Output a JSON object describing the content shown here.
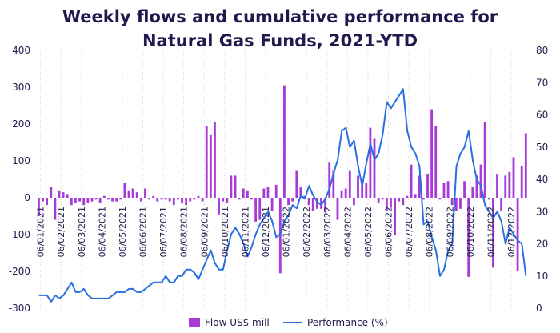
{
  "chart_data": {
    "type": "bar+line",
    "title_line1": "Weekly flows and cumulative performance for",
    "title_line2": "Natural Gas Funds, 2021-YTD",
    "y_left": {
      "ticks": [
        400,
        300,
        200,
        100,
        0,
        -100,
        -200,
        -300
      ],
      "range": [
        -300,
        400
      ]
    },
    "y_right": {
      "ticks": [
        80,
        70,
        60,
        50,
        40,
        30,
        20,
        10,
        0
      ],
      "range": [
        0,
        80
      ]
    },
    "x_tick_labels": [
      "06/01/2021",
      "06/02/2021",
      "06/03/2021",
      "06/04/2021",
      "06/05/2021",
      "06/06/2021",
      "06/07/2021",
      "06/08/2021",
      "06/09/2021",
      "06/10/2021",
      "06/11/2021",
      "06/12/2021",
      "06/01/2022",
      "06/02/2022",
      "06/03/2022",
      "06/04/2022",
      "06/05/2022",
      "06/06/2022",
      "06/07/2022",
      "06/08/2022",
      "06/09/2022",
      "06/10/2022",
      "06/11/2022",
      "06/12/2022"
    ],
    "grid": "vertical",
    "legend_position": "bottom",
    "series": [
      {
        "name": "Flow US$ mill",
        "kind": "bar",
        "color": "#a63bd8",
        "values": [
          -50,
          -10,
          -20,
          30,
          -60,
          20,
          15,
          10,
          -20,
          -15,
          -10,
          -20,
          -15,
          -10,
          -5,
          -15,
          5,
          -5,
          -10,
          -10,
          -5,
          40,
          20,
          25,
          15,
          -10,
          25,
          -5,
          5,
          -10,
          -5,
          -5,
          -10,
          -20,
          -5,
          -15,
          -20,
          -10,
          -5,
          5,
          -10,
          195,
          170,
          205,
          -45,
          -10,
          -15,
          60,
          60,
          -5,
          25,
          20,
          -5,
          -65,
          -60,
          25,
          30,
          -35,
          35,
          -205,
          305,
          -20,
          -10,
          75,
          30,
          5,
          -20,
          -35,
          -30,
          -30,
          -40,
          95,
          75,
          -60,
          20,
          25,
          75,
          -20,
          60,
          50,
          40,
          190,
          160,
          -15,
          -5,
          -35,
          -25,
          -100,
          -10,
          -20,
          5,
          90,
          10,
          60,
          -5,
          65,
          240,
          195,
          -5,
          40,
          45,
          -20,
          -35,
          -30,
          45,
          -215,
          30,
          60,
          90,
          205,
          -5,
          -190,
          65,
          -35,
          60,
          70,
          110,
          -200,
          85,
          175
        ]
      },
      {
        "name": "Performance (%)",
        "kind": "line",
        "color": "#2a6fe0",
        "values": [
          4,
          4,
          4,
          2,
          4,
          3,
          4,
          6,
          8,
          5,
          5,
          6,
          4,
          3,
          3,
          3,
          3,
          3,
          4,
          5,
          5,
          5,
          6,
          6,
          5,
          5,
          6,
          7,
          8,
          8,
          8,
          10,
          8,
          8,
          10,
          10,
          12,
          12,
          11,
          9,
          12,
          15,
          18,
          14,
          12,
          12,
          18,
          23,
          25,
          23,
          20,
          16,
          19,
          23,
          26,
          28,
          30,
          27,
          22,
          23,
          27,
          29,
          32,
          31,
          35,
          34,
          38,
          35,
          33,
          32,
          34,
          37,
          42,
          46,
          55,
          56,
          50,
          52,
          44,
          38,
          45,
          51,
          46,
          48,
          54,
          64,
          62,
          64,
          66,
          68,
          55,
          50,
          48,
          44,
          26,
          27,
          22,
          18,
          10,
          12,
          18,
          20,
          44,
          48,
          50,
          55,
          46,
          40,
          38,
          32,
          30,
          28,
          30,
          27,
          20,
          25,
          23,
          21,
          20,
          10
        ]
      }
    ]
  },
  "legend": {
    "flow_label": "Flow US$ mill",
    "perf_label": "Performance (%)"
  }
}
